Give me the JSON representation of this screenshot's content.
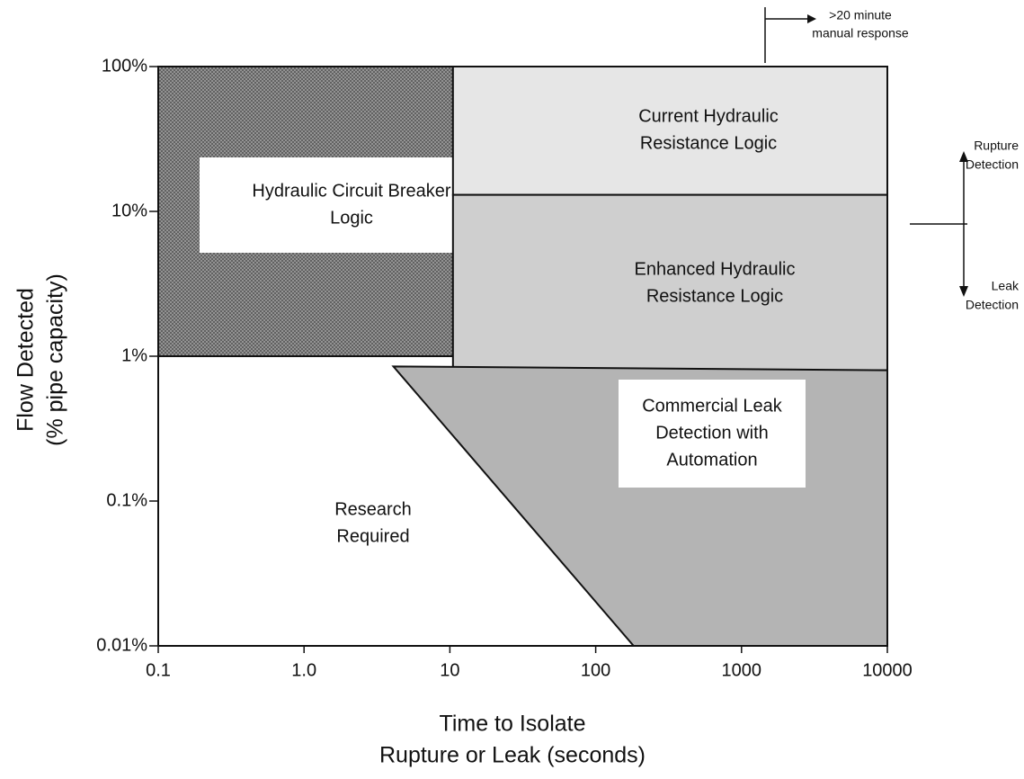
{
  "chart_data": {
    "type": "region",
    "xlabel": [
      "Time to Isolate",
      "Rupture or Leak (seconds)"
    ],
    "ylabel": [
      "Flow Detected",
      "(% pipe capacity)"
    ],
    "xscale": "log",
    "yscale": "log",
    "xlim": [
      0.1,
      10000
    ],
    "xticks": [
      0.1,
      {
        "value": 1,
        "label": "1.0"
      },
      10,
      100,
      1000,
      10000
    ],
    "ylim": [
      0.01,
      100
    ],
    "yticks": [
      {
        "value": 100,
        "label": "100%"
      },
      {
        "value": 10,
        "label": "10%"
      },
      {
        "value": 1,
        "label": "1%"
      },
      {
        "value": 0.1,
        "label": "0.1%"
      },
      {
        "value": 0.01,
        "label": "0.01%"
      }
    ],
    "grid": false,
    "regions": [
      {
        "label": [
          "Hydraulic Circuit Breaker",
          "Logic"
        ],
        "color": "#8c8c8c",
        "x": [
          0.1,
          10.5,
          10.5,
          0.1
        ],
        "y": [
          100,
          100,
          1,
          1
        ]
      },
      {
        "label": [
          "Current Hydraulic",
          "Resistance Logic"
        ],
        "color": "#e6e6e6",
        "x": [
          10.5,
          10000,
          10000,
          10.5
        ],
        "y": [
          100,
          100,
          13,
          13
        ]
      },
      {
        "label": [
          "Enhanced Hydraulic",
          "Resistance Logic"
        ],
        "color": "#cfcfcf",
        "x": [
          10.5,
          10000,
          10000,
          10.5
        ],
        "y": [
          13,
          13,
          0.8,
          0.8
        ]
      },
      {
        "label": [
          "Commercial Leak",
          "Detection with",
          "Automation"
        ],
        "color": "#b4b4b4",
        "x": [
          4.1,
          10000,
          10000,
          182
        ],
        "y": [
          0.85,
          0.8,
          0.01,
          0.01
        ]
      },
      {
        "label": [
          "Research",
          "Required"
        ]
      }
    ],
    "annotations": {
      "manual": [
        ">20 minute",
        "manual response"
      ],
      "rupture": [
        "Rupture",
        "Detection"
      ],
      "leak": [
        "Leak",
        "Detection"
      ]
    }
  }
}
